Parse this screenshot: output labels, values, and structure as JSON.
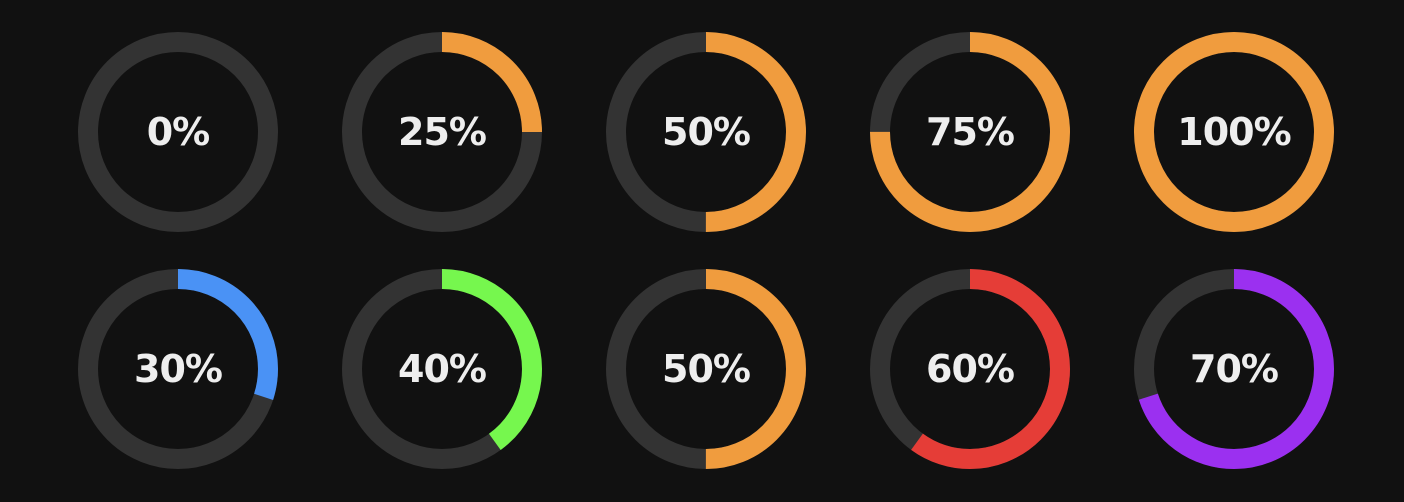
{
  "track_color": "#333333",
  "label_color": "#eeeeee",
  "rings": [
    {
      "label": "0%",
      "value": 0,
      "color": "#f09c3e"
    },
    {
      "label": "25%",
      "value": 25,
      "color": "#f09c3e"
    },
    {
      "label": "50%",
      "value": 50,
      "color": "#f09c3e"
    },
    {
      "label": "75%",
      "value": 75,
      "color": "#f09c3e"
    },
    {
      "label": "100%",
      "value": 100,
      "color": "#f09c3e"
    },
    {
      "label": "30%",
      "value": 30,
      "color": "#4a92f5"
    },
    {
      "label": "40%",
      "value": 40,
      "color": "#76f74e"
    },
    {
      "label": "50%",
      "value": 50,
      "color": "#f09c3e"
    },
    {
      "label": "60%",
      "value": 60,
      "color": "#e53d37"
    },
    {
      "label": "70%",
      "value": 70,
      "color": "#9b30f0"
    }
  ]
}
